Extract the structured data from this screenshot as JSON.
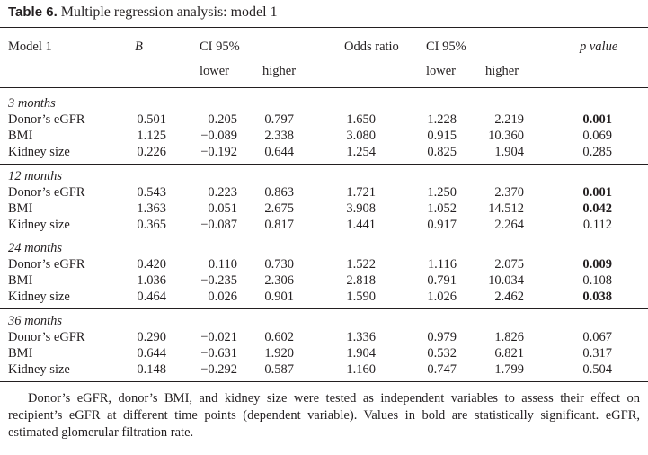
{
  "caption": {
    "label": "Table 6.",
    "text": " Multiple regression analysis: model 1"
  },
  "header": {
    "model": "Model 1",
    "b": "B",
    "ci1": "CI 95%",
    "odds": "Odds ratio",
    "ci2": "CI 95%",
    "p": "p value",
    "lower1": "lower",
    "higher1": "higher",
    "lower2": "lower",
    "higher2": "higher"
  },
  "groups": [
    {
      "title": "3 months",
      "rows": [
        {
          "name": "Donor’s eGFR",
          "b": "0.501",
          "lo1": "0.205",
          "hi1": "0.797",
          "or": "1.650",
          "lo2": "1.228",
          "hi2": "2.219",
          "p": "0.001",
          "bold": true
        },
        {
          "name": "BMI",
          "b": "1.125",
          "lo1": "−0.089",
          "hi1": "2.338",
          "or": "3.080",
          "lo2": "0.915",
          "hi2": "10.360",
          "p": "0.069",
          "bold": false
        },
        {
          "name": "Kidney size",
          "b": "0.226",
          "lo1": "−0.192",
          "hi1": "0.644",
          "or": "1.254",
          "lo2": "0.825",
          "hi2": "1.904",
          "p": "0.285",
          "bold": false
        }
      ]
    },
    {
      "title": "12 months",
      "rows": [
        {
          "name": "Donor’s eGFR",
          "b": "0.543",
          "lo1": "0.223",
          "hi1": "0.863",
          "or": "1.721",
          "lo2": "1.250",
          "hi2": "2.370",
          "p": "0.001",
          "bold": true
        },
        {
          "name": "BMI",
          "b": "1.363",
          "lo1": "0.051",
          "hi1": "2.675",
          "or": "3.908",
          "lo2": "1.052",
          "hi2": "14.512",
          "p": "0.042",
          "bold": true
        },
        {
          "name": "Kidney size",
          "b": "0.365",
          "lo1": "−0.087",
          "hi1": "0.817",
          "or": "1.441",
          "lo2": "0.917",
          "hi2": "2.264",
          "p": "0.112",
          "bold": false
        }
      ]
    },
    {
      "title": "24 months",
      "rows": [
        {
          "name": "Donor’s eGFR",
          "b": "0.420",
          "lo1": "0.110",
          "hi1": "0.730",
          "or": "1.522",
          "lo2": "1.116",
          "hi2": "2.075",
          "p": "0.009",
          "bold": true
        },
        {
          "name": "BMI",
          "b": "1.036",
          "lo1": "−0.235",
          "hi1": "2.306",
          "or": "2.818",
          "lo2": "0.791",
          "hi2": "10.034",
          "p": "0.108",
          "bold": false
        },
        {
          "name": "Kidney size",
          "b": "0.464",
          "lo1": "0.026",
          "hi1": "0.901",
          "or": "1.590",
          "lo2": "1.026",
          "hi2": "2.462",
          "p": "0.038",
          "bold": true
        }
      ]
    },
    {
      "title": "36 months",
      "rows": [
        {
          "name": "Donor’s eGFR",
          "b": "0.290",
          "lo1": "−0.021",
          "hi1": "0.602",
          "or": "1.336",
          "lo2": "0.979",
          "hi2": "1.826",
          "p": "0.067",
          "bold": false
        },
        {
          "name": "BMI",
          "b": "0.644",
          "lo1": "−0.631",
          "hi1": "1.920",
          "or": "1.904",
          "lo2": "0.532",
          "hi2": "6.821",
          "p": "0.317",
          "bold": false
        },
        {
          "name": "Kidney size",
          "b": "0.148",
          "lo1": "−0.292",
          "hi1": "0.587",
          "or": "1.160",
          "lo2": "0.747",
          "hi2": "1.799",
          "p": "0.504",
          "bold": false
        }
      ]
    }
  ],
  "footnote": "Donor’s eGFR, donor’s BMI, and kidney size were tested as independent variables to assess their effect on recipient’s eGFR at different time points (dependent variable). Values in bold are statistically significant. eGFR, estimated glomerular filtration rate."
}
